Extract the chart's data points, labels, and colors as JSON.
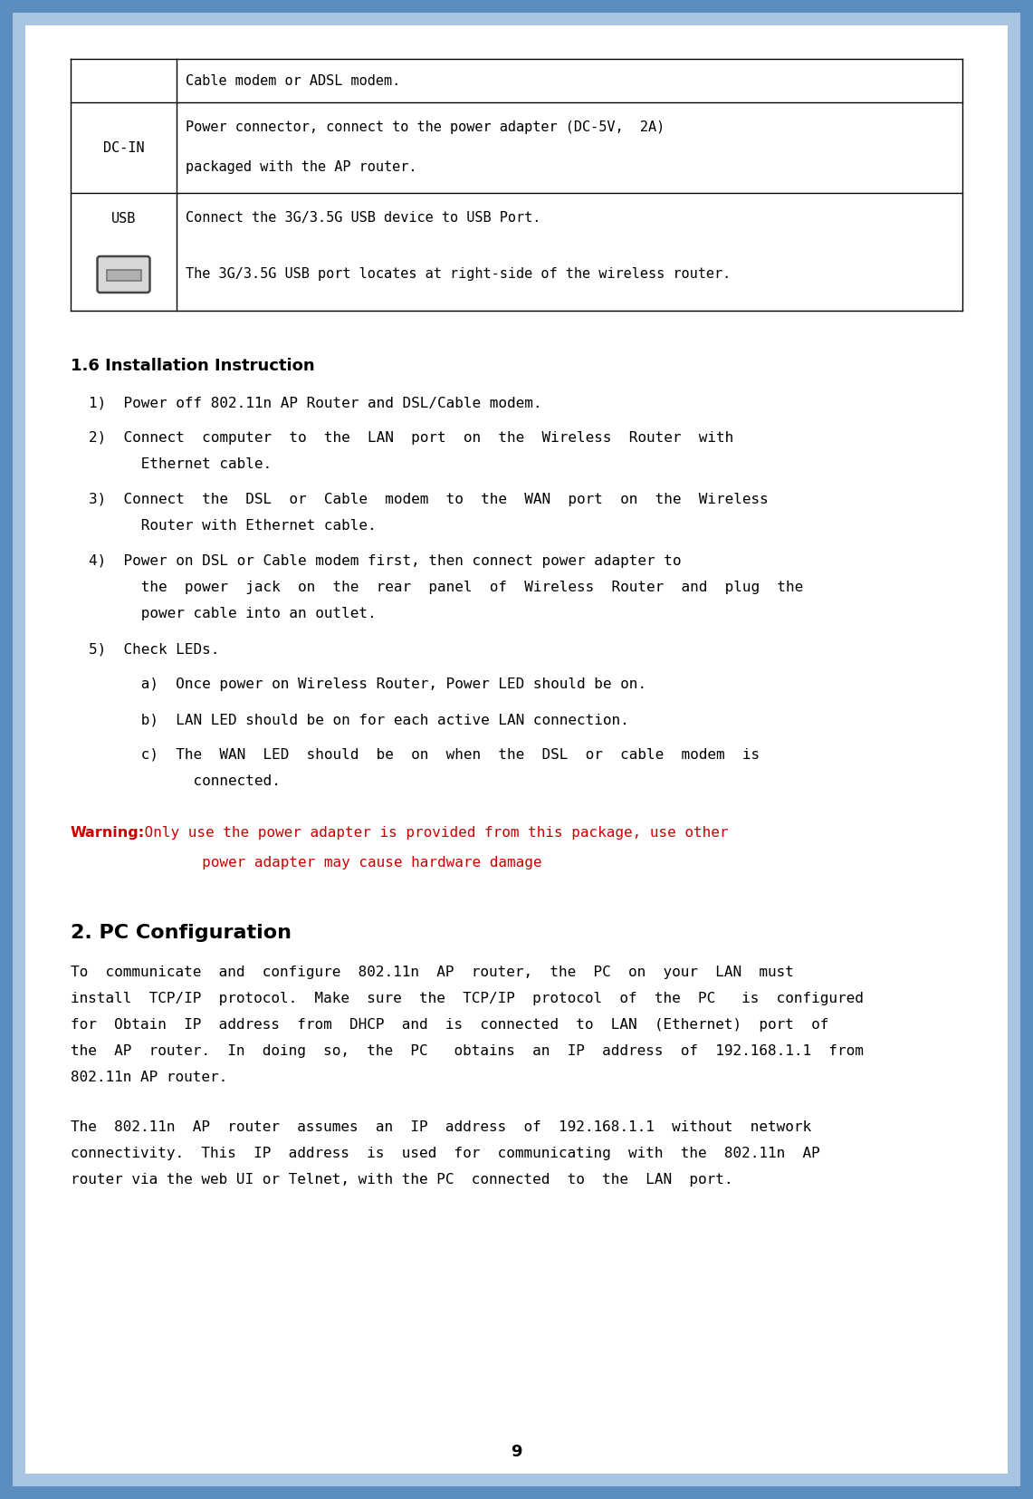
{
  "page_bg": "#ffffff",
  "outer_border_color": "#6699cc",
  "inner_border_color": "#aabbdd",
  "page_number": "9",
  "table_rows": [
    {
      "label": "",
      "lines": [
        "Cable modem or ADSL modem."
      ]
    },
    {
      "label": "DC-IN",
      "lines": [
        "Power connector, connect to the power adapter (DC-5V,  2A)",
        "packaged with the AP router."
      ]
    },
    {
      "label": "USB",
      "lines": [
        "Connect the 3G/3.5G USB device to USB Port.",
        "The 3G/3.5G USB port locates at right-side of the wireless router."
      ],
      "has_icon": true
    }
  ],
  "section16_title": "1.6 Installation Instruction",
  "items": [
    {
      "text": "1)  Power off 802.11n AP Router and DSL/Cable modem.",
      "indent": 0,
      "cont": false
    },
    {
      "text": "2)  Connect  computer  to  the  LAN  port  on  the  Wireless  Router  with",
      "indent": 0,
      "cont": true
    },
    {
      "text": "      Ethernet cable.",
      "indent": 0,
      "cont": false
    },
    {
      "text": "3)  Connect  the  DSL  or  Cable  modem  to  the  WAN  port  on  the  Wireless",
      "indent": 0,
      "cont": true
    },
    {
      "text": "      Router with Ethernet cable.",
      "indent": 0,
      "cont": false
    },
    {
      "text": "4)  Power on DSL or Cable modem first, then connect power adapter to",
      "indent": 0,
      "cont": true
    },
    {
      "text": "      the  power  jack  on  the  rear  panel  of  Wireless  Router  and  plug  the",
      "indent": 0,
      "cont": true
    },
    {
      "text": "      power cable into an outlet.",
      "indent": 0,
      "cont": false
    },
    {
      "text": "5)  Check LEDs.",
      "indent": 0,
      "cont": false
    },
    {
      "text": "      a)  Once power on Wireless Router, Power LED should be on.",
      "indent": 0,
      "cont": false
    },
    {
      "text": "      b)  LAN LED should be on for each active LAN connection.",
      "indent": 0,
      "cont": false
    },
    {
      "text": "      c)  The  WAN  LED  should  be  on  when  the  DSL  or  cable  modem  is",
      "indent": 0,
      "cont": true
    },
    {
      "text": "            connected.",
      "indent": 0,
      "cont": false
    }
  ],
  "warning_label": "Warning:",
  "warning_rest": " Only use the power adapter is provided from this package, use other",
  "warning_line2": "             power adapter may cause hardware damage",
  "warning_color": "#cc0000",
  "sec2_title": "2. PC Configuration",
  "para1": [
    "To  communicate  and  configure  802.11n  AP  router,  the  PC  on  your  LAN  must",
    "install  TCP/IP  protocol.  Make  sure  the  TCP/IP  protocol  of  the  PC   is  configured",
    "for  Obtain  IP  address  from  DHCP  and  is  connected  to  LAN  (Ethernet)  port  of",
    "the  AP  router.  In  doing  so,  the  PC   obtains  an  IP  address  of  192.168.1.1  from",
    "802.11n AP router."
  ],
  "para2": [
    "The  802.11n  AP  router  assumes  an  IP  address  of  192.168.1.1  without  network",
    "connectivity.  This  IP  address  is  used  for  communicating  with  the  802.11n  AP",
    "router via the web UI or Telnet, with the PC  connected  to  the  LAN  port."
  ]
}
